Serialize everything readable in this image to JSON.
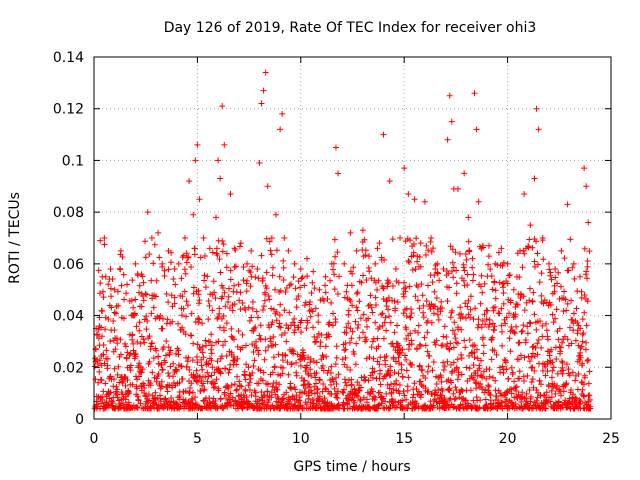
{
  "chart_data": {
    "type": "scatter",
    "title": "Day 126 of 2019, Rate Of TEC Index for receiver ohi3",
    "xlabel": "GPS time / hours",
    "ylabel": "ROTI / TECUs",
    "xlim": [
      0,
      25
    ],
    "ylim": [
      0,
      0.14
    ],
    "xticks": [
      "0",
      "5",
      "10",
      "15",
      "20",
      "25"
    ],
    "yticks": [
      "0",
      "0.02",
      "0.04",
      "0.06",
      "0.08",
      "0.1",
      "0.12",
      "0.14"
    ],
    "grid": true,
    "marker": "+",
    "color": "#ff0000",
    "series": [
      {
        "x": [
          0.1,
          0.3,
          0.4,
          0.5,
          0.8,
          1.0,
          1.3,
          1.6,
          2.0,
          2.3,
          2.6,
          2.8,
          3.1,
          3.3,
          3.6,
          3.9,
          4.1,
          4.4,
          4.6,
          4.8,
          4.9,
          5.0,
          5.1,
          5.3,
          5.6,
          5.9,
          6.0,
          6.1,
          6.2,
          6.3,
          6.6,
          6.8,
          7.1,
          7.4,
          7.6,
          7.9,
          8.0,
          8.1,
          8.2,
          8.3,
          8.4,
          8.6,
          8.8,
          9.0,
          9.1,
          9.2,
          9.4,
          9.7,
          10.0,
          10.3,
          10.6,
          10.9,
          11.2,
          11.5,
          11.7,
          11.8,
          12.1,
          12.4,
          12.7,
          13.0,
          13.3,
          13.6,
          13.8,
          14.0,
          14.3,
          14.6,
          14.8,
          15.0,
          15.2,
          15.5,
          15.8,
          16.0,
          16.3,
          16.6,
          16.9,
          17.1,
          17.2,
          17.3,
          17.4,
          17.6,
          17.9,
          18.1,
          18.3,
          18.4,
          18.5,
          18.6,
          18.8,
          19.1,
          19.4,
          19.7,
          20.0,
          20.3,
          20.6,
          20.8,
          21.1,
          21.3,
          21.4,
          21.5,
          21.7,
          22.0,
          22.3,
          22.6,
          22.9,
          23.2,
          23.5,
          23.7,
          23.8,
          23.9
        ],
        "y": [
          0.035,
          0.069,
          0.055,
          0.07,
          0.058,
          0.05,
          0.065,
          0.052,
          0.06,
          0.056,
          0.08,
          0.07,
          0.072,
          0.06,
          0.065,
          0.058,
          0.06,
          0.07,
          0.092,
          0.079,
          0.1,
          0.106,
          0.085,
          0.07,
          0.066,
          0.078,
          0.1,
          0.093,
          0.121,
          0.106,
          0.087,
          0.066,
          0.068,
          0.06,
          0.065,
          0.058,
          0.099,
          0.122,
          0.127,
          0.134,
          0.09,
          0.07,
          0.079,
          0.112,
          0.118,
          0.07,
          0.065,
          0.06,
          0.058,
          0.062,
          0.057,
          0.05,
          0.055,
          0.06,
          0.105,
          0.095,
          0.06,
          0.072,
          0.065,
          0.073,
          0.063,
          0.06,
          0.068,
          0.11,
          0.092,
          0.058,
          0.07,
          0.097,
          0.087,
          0.085,
          0.068,
          0.084,
          0.07,
          0.06,
          0.058,
          0.108,
          0.125,
          0.115,
          0.089,
          0.089,
          0.095,
          0.078,
          0.062,
          0.126,
          0.112,
          0.084,
          0.067,
          0.067,
          0.06,
          0.066,
          0.06,
          0.05,
          0.065,
          0.087,
          0.075,
          0.093,
          0.12,
          0.112,
          0.07,
          0.06,
          0.058,
          0.065,
          0.083,
          0.06,
          0.055,
          0.097,
          0.09,
          0.076
        ]
      }
    ]
  }
}
